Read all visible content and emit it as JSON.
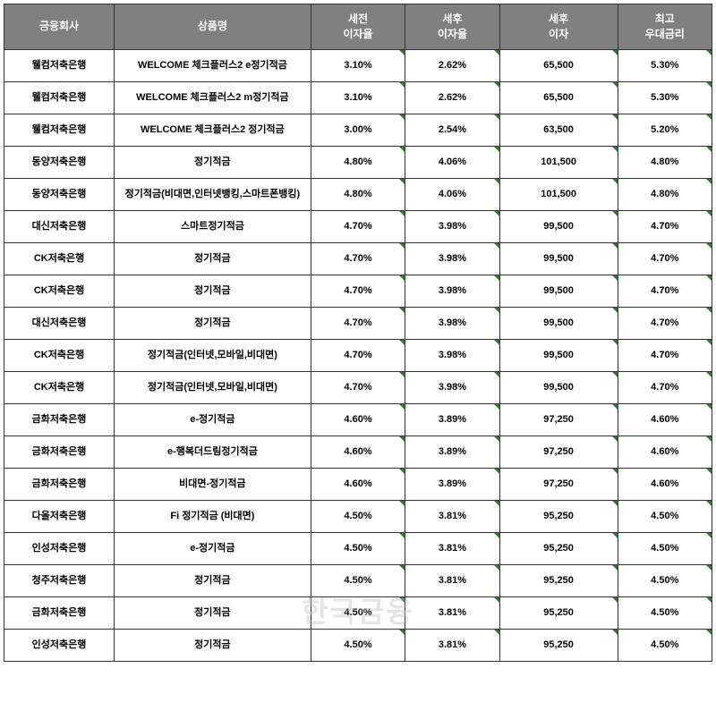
{
  "table": {
    "columns": [
      "금융회사",
      "상품명",
      "세전\n이자율",
      "세후\n이자율",
      "세후\n이자",
      "최고\n우대금리"
    ],
    "column_widths": [
      "14%",
      "25%",
      "12%",
      "12%",
      "15%",
      "12%"
    ],
    "header_bg": "#808080",
    "header_fg": "#ffffff",
    "border_color": "#333333",
    "corner_mark_color": "#2e7d32",
    "font_size_header": 12,
    "font_size_cell": 11,
    "corner_columns": [
      2,
      3,
      4,
      5
    ],
    "rows": [
      [
        "웰컴저축은행",
        "WELCOME 체크플러스2 e정기적금",
        "3.10%",
        "2.62%",
        "65,500",
        "5.30%"
      ],
      [
        "웰컴저축은행",
        "WELCOME 체크플러스2 m정기적금",
        "3.10%",
        "2.62%",
        "65,500",
        "5.30%"
      ],
      [
        "웰컴저축은행",
        "WELCOME 체크플러스2 정기적금",
        "3.00%",
        "2.54%",
        "63,500",
        "5.20%"
      ],
      [
        "동양저축은행",
        "정기적금",
        "4.80%",
        "4.06%",
        "101,500",
        "4.80%"
      ],
      [
        "동양저축은행",
        "정기적금(비대면,인터넷뱅킹,스마트폰뱅킹)",
        "4.80%",
        "4.06%",
        "101,500",
        "4.80%"
      ],
      [
        "대신저축은행",
        "스마트정기적금",
        "4.70%",
        "3.98%",
        "99,500",
        "4.70%"
      ],
      [
        "CK저축은행",
        "정기적금",
        "4.70%",
        "3.98%",
        "99,500",
        "4.70%"
      ],
      [
        "CK저축은행",
        "정기적금",
        "4.70%",
        "3.98%",
        "99,500",
        "4.70%"
      ],
      [
        "대신저축은행",
        "정기적금",
        "4.70%",
        "3.98%",
        "99,500",
        "4.70%"
      ],
      [
        "CK저축은행",
        "정기적금(인터넷,모바일,비대면)",
        "4.70%",
        "3.98%",
        "99,500",
        "4.70%"
      ],
      [
        "CK저축은행",
        "정기적금(인터넷,모바일,비대면)",
        "4.70%",
        "3.98%",
        "99,500",
        "4.70%"
      ],
      [
        "금화저축은행",
        "e-정기적금",
        "4.60%",
        "3.89%",
        "97,250",
        "4.60%"
      ],
      [
        "금화저축은행",
        "e-행복더드림정기적금",
        "4.60%",
        "3.89%",
        "97,250",
        "4.60%"
      ],
      [
        "금화저축은행",
        "비대면-정기적금",
        "4.60%",
        "3.89%",
        "97,250",
        "4.60%"
      ],
      [
        "다올저축은행",
        "Fi 정기적금 (비대면)",
        "4.50%",
        "3.81%",
        "95,250",
        "4.50%"
      ],
      [
        "인성저축은행",
        "e-정기적금",
        "4.50%",
        "3.81%",
        "95,250",
        "4.50%"
      ],
      [
        "청주저축은행",
        "정기적금",
        "4.50%",
        "3.81%",
        "95,250",
        "4.50%"
      ],
      [
        "금화저축은행",
        "정기적금",
        "4.50%",
        "3.81%",
        "95,250",
        "4.50%"
      ],
      [
        "인성저축은행",
        "정기적금",
        "4.50%",
        "3.81%",
        "95,250",
        "4.50%"
      ]
    ]
  },
  "watermark": "한국금융"
}
